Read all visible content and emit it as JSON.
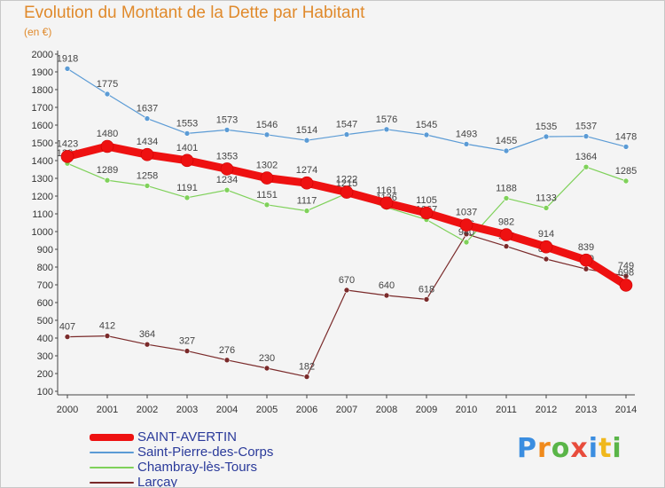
{
  "title": "Evolution du Montant de la Dette par Habitant",
  "unit": "(en €)",
  "logo": {
    "text": "Proxiti",
    "letters": [
      {
        "ch": "P",
        "color": "#3a8de0"
      },
      {
        "ch": "r",
        "color": "#f08a1c"
      },
      {
        "ch": "o",
        "color": "#5ab548"
      },
      {
        "ch": "x",
        "color": "#e84c3c"
      },
      {
        "ch": "i",
        "color": "#3a8de0"
      },
      {
        "ch": "t",
        "color": "#f0b81c"
      },
      {
        "ch": "i",
        "color": "#5ab548"
      }
    ]
  },
  "chart_data": {
    "type": "line",
    "title": "Evolution du Montant de la Dette par Habitant",
    "ylabel": "(en €)",
    "xlabel": "",
    "x": [
      "2000",
      "2001",
      "2002",
      "2003",
      "2004",
      "2005",
      "2006",
      "2007",
      "2008",
      "2009",
      "2010",
      "2011",
      "2012",
      "2013",
      "2014"
    ],
    "ylim": [
      100,
      2000
    ],
    "yticks": [
      100,
      200,
      300,
      400,
      500,
      600,
      700,
      800,
      900,
      1000,
      1100,
      1200,
      1300,
      1400,
      1500,
      1600,
      1700,
      1800,
      1900,
      2000
    ],
    "grid": false,
    "legend_position": "bottom-left",
    "series": [
      {
        "name": "SAINT-AVERTIN",
        "color": "#ee1111",
        "width": 9,
        "values": [
          1423,
          1480,
          1434,
          1401,
          1353,
          1302,
          1274,
          1222,
          1161,
          1105,
          1037,
          982,
          914,
          839,
          698
        ]
      },
      {
        "name": "Saint-Pierre-des-Corps",
        "color": "#5b9bd5",
        "width": 1.2,
        "values": [
          1918,
          1775,
          1637,
          1553,
          1573,
          1546,
          1514,
          1547,
          1576,
          1545,
          1493,
          1455,
          1535,
          1537,
          1478
        ]
      },
      {
        "name": "Chambray-lès-Tours",
        "color": "#7fd15a",
        "width": 1.2,
        "values": [
          1384,
          1289,
          1258,
          1191,
          1234,
          1151,
          1117,
          1215,
          1136,
          1067,
          940,
          1188,
          1133,
          1364,
          1285
        ]
      },
      {
        "name": "Larçay",
        "color": "#7a2a2a",
        "width": 1.2,
        "values": [
          407,
          412,
          364,
          327,
          276,
          230,
          182,
          670,
          640,
          618,
          986,
          917,
          845,
          789,
          749
        ]
      }
    ]
  }
}
